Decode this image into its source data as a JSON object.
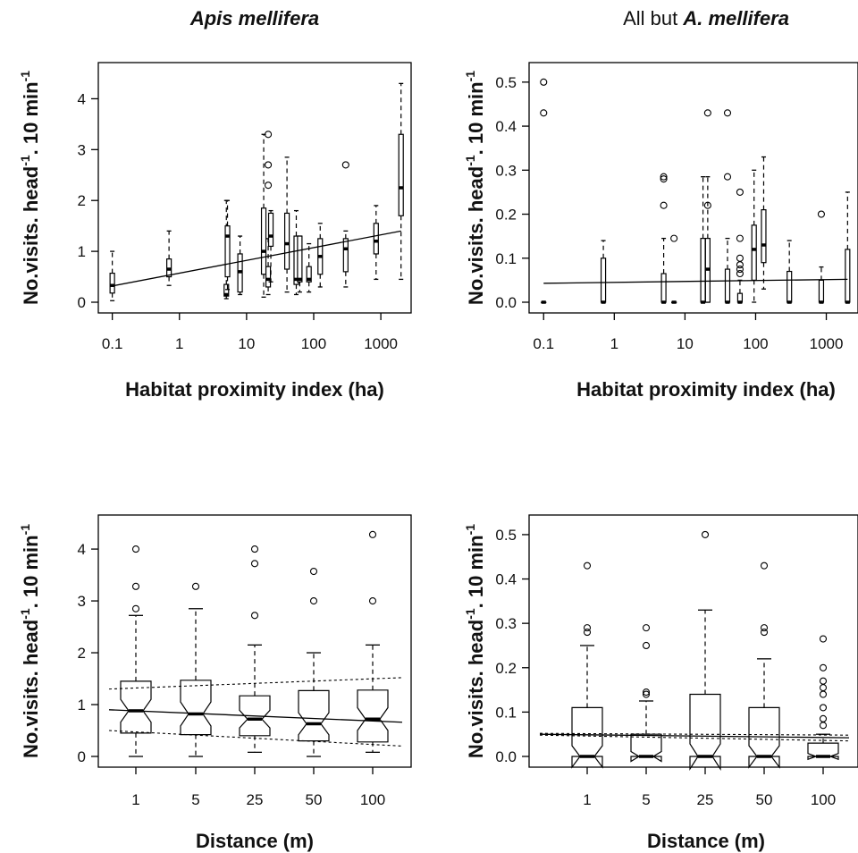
{
  "chart_data": [
    {
      "type": "box",
      "title_italic": "Apis mellifera",
      "xlabel": "Habitat proximity index (ha)",
      "ylabel_parts": [
        "No.visits. head",
        "-1",
        ". 10 min",
        "-1"
      ],
      "xscale": "log",
      "xlim": [
        0.07,
        2500
      ],
      "ylim": [
        0,
        4.5
      ],
      "xticks": [
        0.1,
        1,
        10,
        100,
        1000
      ],
      "xtick_labels": [
        "0.1",
        "1",
        "10",
        "100",
        "1000"
      ],
      "yticks": [
        0,
        1,
        2,
        3,
        4
      ],
      "ytick_labels": [
        "0",
        "1",
        "2",
        "3",
        "4"
      ],
      "boxes": [
        {
          "x": 0.1,
          "min": 0.03,
          "q1": 0.18,
          "med": 0.33,
          "q3": 0.57,
          "max": 1.0
        },
        {
          "x": 0.7,
          "min": 0.33,
          "q1": 0.5,
          "med": 0.65,
          "q3": 0.85,
          "max": 1.4
        },
        {
          "x": 5,
          "min": 0.07,
          "q1": 0.12,
          "med": 0.15,
          "q3": 0.35,
          "max": 2.0
        },
        {
          "x": 5.2,
          "min": 0.25,
          "q1": 0.5,
          "med": 1.3,
          "q3": 1.5,
          "max": 2.0
        },
        {
          "x": 8,
          "min": 0.15,
          "q1": 0.2,
          "med": 0.6,
          "q3": 0.95,
          "max": 1.3
        },
        {
          "x": 18,
          "min": 0.1,
          "q1": 0.55,
          "med": 1.0,
          "q3": 1.85,
          "max": 3.3
        },
        {
          "x": 21,
          "min": 0.15,
          "q1": 0.3,
          "med": 0.45,
          "q3": 0.7,
          "max": 1.25,
          "outliers": [
            3.3,
            2.7,
            2.3
          ]
        },
        {
          "x": 23,
          "min": 0.4,
          "q1": 1.1,
          "med": 1.3,
          "q3": 1.75,
          "max": 1.8
        },
        {
          "x": 40,
          "min": 0.2,
          "q1": 0.65,
          "med": 1.15,
          "q3": 1.75,
          "max": 2.85
        },
        {
          "x": 55,
          "min": 0.15,
          "q1": 0.35,
          "med": 0.45,
          "q3": 1.3,
          "max": 1.8
        },
        {
          "x": 62,
          "min": 0.2,
          "q1": 0.4,
          "med": 0.45,
          "q3": 1.3,
          "max": 1.3
        },
        {
          "x": 85,
          "min": 0.2,
          "q1": 0.4,
          "med": 0.45,
          "q3": 0.7,
          "max": 1.15
        },
        {
          "x": 125,
          "min": 0.3,
          "q1": 0.55,
          "med": 0.9,
          "q3": 1.25,
          "max": 1.55
        },
        {
          "x": 300,
          "min": 0.3,
          "q1": 0.6,
          "med": 1.05,
          "q3": 1.25,
          "max": 1.4,
          "outliers": [
            2.7
          ]
        },
        {
          "x": 850,
          "min": 0.45,
          "q1": 0.95,
          "med": 1.2,
          "q3": 1.55,
          "max": 1.9
        },
        {
          "x": 2000,
          "min": 0.45,
          "q1": 1.7,
          "med": 2.25,
          "q3": 3.3,
          "max": 4.3
        }
      ],
      "fit": {
        "x": [
          0.1,
          2000
        ],
        "y": [
          0.32,
          1.4
        ]
      }
    },
    {
      "type": "box",
      "title_plain": "All but ",
      "title_italic": "A. mellifera",
      "xlabel": "Habitat proximity index (ha)",
      "ylabel_parts": [
        "No.visits. head",
        "-1",
        ". 10 min",
        "-1"
      ],
      "xscale": "log",
      "xlim": [
        0.07,
        2500
      ],
      "ylim": [
        0,
        0.52
      ],
      "xticks": [
        0.1,
        1,
        10,
        100,
        1000
      ],
      "xtick_labels": [
        "0.1",
        "1",
        "10",
        "100",
        "1000"
      ],
      "yticks": [
        0,
        0.1,
        0.2,
        0.3,
        0.4,
        0.5
      ],
      "ytick_labels": [
        "0.0",
        "0.1",
        "0.2",
        "0.3",
        "0.4",
        "0.5"
      ],
      "boxes": [
        {
          "x": 0.1,
          "min": 0,
          "q1": 0,
          "med": 0,
          "q3": 0,
          "max": 0,
          "outliers": [
            0.5,
            0.43
          ]
        },
        {
          "x": 0.7,
          "min": 0,
          "q1": 0,
          "med": 0,
          "q3": 0.1,
          "max": 0.14
        },
        {
          "x": 5,
          "min": 0,
          "q1": 0,
          "med": 0,
          "q3": 0.065,
          "max": 0.145,
          "outliers": [
            0.285,
            0.28,
            0.22
          ]
        },
        {
          "x": 7,
          "min": 0,
          "q1": 0,
          "med": 0,
          "q3": 0,
          "max": 0,
          "outliers": [
            0.145
          ]
        },
        {
          "x": 18,
          "min": 0,
          "q1": 0,
          "med": 0,
          "q3": 0.145,
          "max": 0.285
        },
        {
          "x": 21,
          "min": 0,
          "q1": 0,
          "med": 0.075,
          "q3": 0.145,
          "max": 0.285,
          "outliers": [
            0.43,
            0.22
          ]
        },
        {
          "x": 40,
          "min": 0,
          "q1": 0,
          "med": 0,
          "q3": 0.075,
          "max": 0.145,
          "outliers": [
            0.43,
            0.285
          ]
        },
        {
          "x": 60,
          "min": 0,
          "q1": 0,
          "med": 0,
          "q3": 0.02,
          "max": 0.05,
          "outliers": [
            0.25,
            0.145,
            0.1,
            0.085,
            0.075,
            0.065
          ]
        },
        {
          "x": 95,
          "min": 0,
          "q1": 0.05,
          "med": 0.12,
          "q3": 0.175,
          "max": 0.3
        },
        {
          "x": 130,
          "min": 0.03,
          "q1": 0.09,
          "med": 0.13,
          "q3": 0.21,
          "max": 0.33
        },
        {
          "x": 300,
          "min": 0,
          "q1": 0,
          "med": 0,
          "q3": 0.07,
          "max": 0.14
        },
        {
          "x": 850,
          "min": 0,
          "q1": 0,
          "med": 0,
          "q3": 0.05,
          "max": 0.08,
          "outliers": [
            0.2
          ]
        },
        {
          "x": 2000,
          "min": 0,
          "q1": 0,
          "med": 0,
          "q3": 0.12,
          "max": 0.25
        }
      ],
      "fit": {
        "x": [
          0.1,
          2000
        ],
        "y": [
          0.043,
          0.052
        ]
      }
    },
    {
      "type": "box",
      "xlabel": "Distance (m)",
      "ylabel_parts": [
        "No.visits. head",
        "-1",
        ". 10 min",
        "-1"
      ],
      "xscale": "category",
      "categories": [
        "1",
        "5",
        "25",
        "50",
        "100"
      ],
      "ylim": [
        0,
        4.45
      ],
      "yticks": [
        0,
        1,
        2,
        3,
        4
      ],
      "ytick_labels": [
        "0",
        "1",
        "2",
        "3",
        "4"
      ],
      "boxes": [
        {
          "min": 0,
          "q1": 0.45,
          "med": 0.88,
          "q3": 1.45,
          "max": 2.72,
          "outliers": [
            4.0,
            3.28,
            2.85
          ]
        },
        {
          "min": 0,
          "q1": 0.42,
          "med": 0.82,
          "q3": 1.47,
          "max": 2.85,
          "outliers": [
            3.28
          ]
        },
        {
          "min": 0.08,
          "q1": 0.4,
          "med": 0.72,
          "q3": 1.17,
          "max": 2.15,
          "outliers": [
            4.0,
            3.72,
            2.72
          ]
        },
        {
          "min": 0,
          "q1": 0.3,
          "med": 0.63,
          "q3": 1.27,
          "max": 2.0,
          "outliers": [
            3.57,
            3.0
          ]
        },
        {
          "min": 0.08,
          "q1": 0.28,
          "med": 0.72,
          "q3": 1.28,
          "max": 2.15,
          "outliers": [
            4.28,
            3.0
          ]
        }
      ],
      "fit": {
        "y": [
          0.9,
          0.66
        ]
      },
      "ci_upper": [
        1.3,
        1.52
      ],
      "ci_lower": [
        0.5,
        0.2
      ]
    },
    {
      "type": "box",
      "xlabel": "Distance (m)",
      "ylabel_parts": [
        "No.visits. head",
        "-1",
        ". 10 min",
        "-1"
      ],
      "xscale": "category",
      "categories": [
        "1",
        "5",
        "25",
        "50",
        "100"
      ],
      "ylim": [
        0,
        0.52
      ],
      "yticks": [
        0,
        0.1,
        0.2,
        0.3,
        0.4,
        0.5
      ],
      "ytick_labels": [
        "0.0",
        "0.1",
        "0.2",
        "0.3",
        "0.4",
        "0.5"
      ],
      "boxes": [
        {
          "min": 0,
          "q1": 0,
          "med": 0,
          "q3": 0.11,
          "max": 0.25,
          "outliers": [
            0.43,
            0.29,
            0.28
          ]
        },
        {
          "min": 0,
          "q1": 0,
          "med": 0,
          "q3": 0.05,
          "max": 0.125,
          "outliers": [
            0.29,
            0.25,
            0.145,
            0.14
          ]
        },
        {
          "min": 0,
          "q1": 0,
          "med": 0,
          "q3": 0.14,
          "max": 0.33,
          "outliers": [
            0.5
          ]
        },
        {
          "min": 0,
          "q1": 0,
          "med": 0,
          "q3": 0.11,
          "max": 0.22,
          "outliers": [
            0.43,
            0.29,
            0.28
          ]
        },
        {
          "min": 0,
          "q1": 0,
          "med": 0,
          "q3": 0.03,
          "max": 0.05,
          "outliers": [
            0.265,
            0.2,
            0.17,
            0.155,
            0.14,
            0.11,
            0.085,
            0.07
          ]
        }
      ],
      "fit": {
        "y": [
          0.05,
          0.042
        ]
      },
      "ci_upper": [
        0.052,
        0.048
      ],
      "ci_lower": [
        0.048,
        0.035
      ]
    }
  ]
}
